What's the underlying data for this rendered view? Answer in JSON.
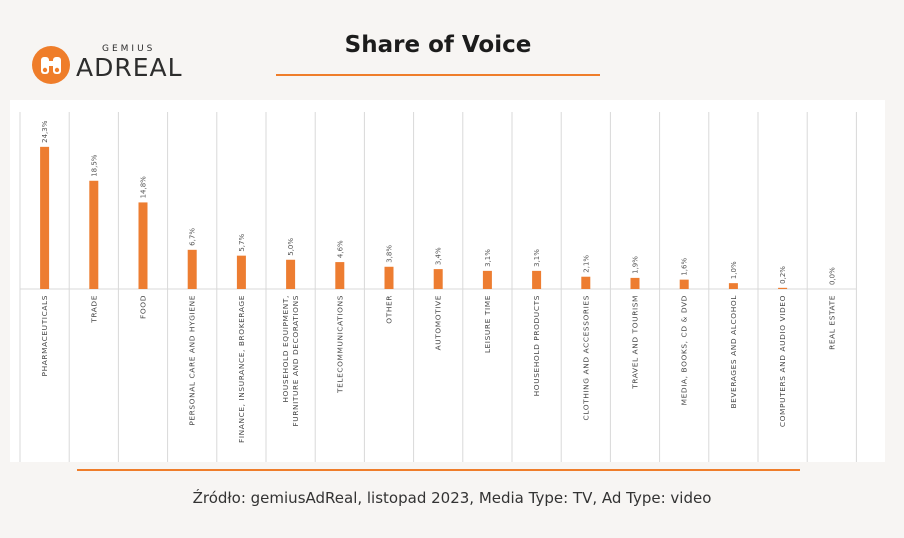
{
  "logo": {
    "small": "GEMIUS",
    "big": "ADREAL"
  },
  "header": {
    "title": "Share of Voice"
  },
  "footer": {
    "source": "Źródło: gemiusAdReal, listopad 2023, Media Type: TV, Ad Type: video"
  },
  "colors": {
    "accent": "#ef7d2a",
    "bar": "#ed7d31",
    "grid": "#d9d9d9"
  },
  "chart_data": {
    "type": "bar",
    "title": "Share of Voice",
    "ylabel": "",
    "xlabel": "",
    "ylim": [
      0,
      30
    ],
    "categories": [
      [
        "PHARMACEUTICALS"
      ],
      [
        "TRADE"
      ],
      [
        "FOOD"
      ],
      [
        "PERSONAL CARE AND HYGIENE"
      ],
      [
        "FINANCE, INSURANCE, BROKERAGE"
      ],
      [
        "HOUSEHOLD EQUIPMENT,",
        "FURNITURE AND DECORATIONS"
      ],
      [
        "TELECOMMUNICATIONS"
      ],
      [
        "OTHER"
      ],
      [
        "AUTOMOTIVE"
      ],
      [
        "LEISURE TIME"
      ],
      [
        "HOUSEHOLD PRODUCTS"
      ],
      [
        "CLOTHING AND ACCESSORIES"
      ],
      [
        "TRAVEL AND TOURISM"
      ],
      [
        "MEDIA, BOOKS, CD & DVD"
      ],
      [
        "BEVERAGES AND ALCOHOL"
      ],
      [
        "COMPUTERS AND AUDIO VIDEO"
      ],
      [
        "REAL ESTATE"
      ]
    ],
    "values": [
      24.3,
      18.5,
      14.8,
      6.7,
      5.7,
      5.0,
      4.6,
      3.8,
      3.4,
      3.1,
      3.1,
      2.1,
      1.9,
      1.6,
      1.0,
      0.2,
      0.0
    ],
    "labels": [
      "24,3%",
      "18,5%",
      "14,8%",
      "6,7%",
      "5,7%",
      "5,0%",
      "4,6%",
      "3,8%",
      "3,4%",
      "3,1%",
      "3,1%",
      "2,1%",
      "1,9%",
      "1,6%",
      "1,0%",
      "0,2%",
      "0,0%"
    ]
  }
}
